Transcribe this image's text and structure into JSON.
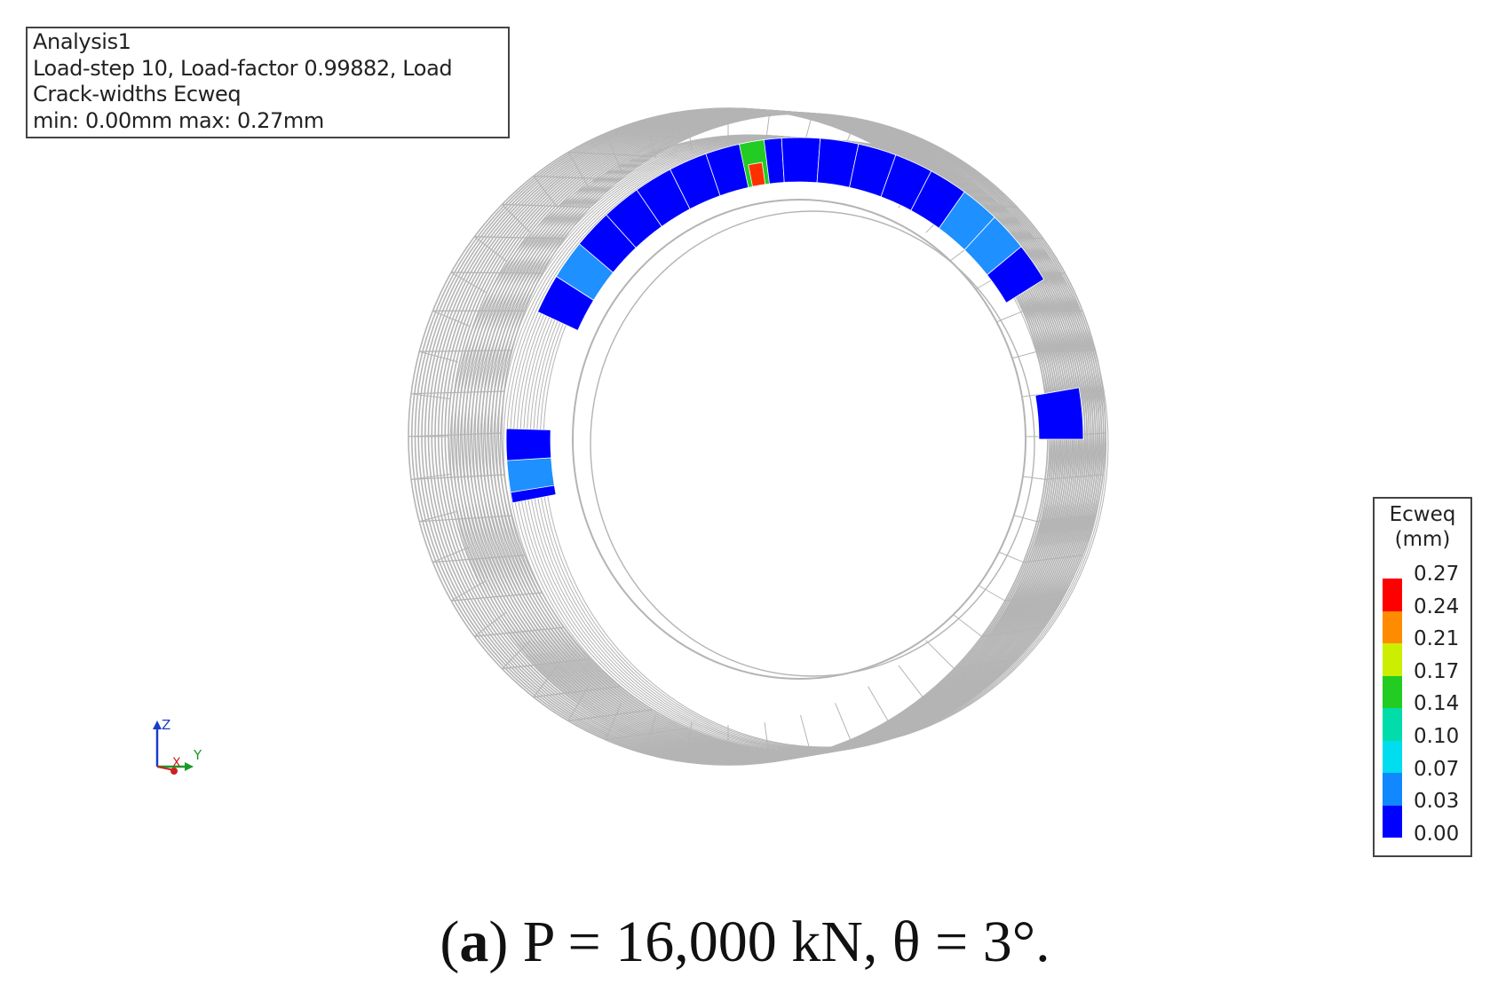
{
  "info": {
    "line1": "Analysis1",
    "line2": "Load-step 10, Load-factor 0.99882, Load",
    "line3": "Crack-widths Ecweq",
    "line4": "min:  0.00mm max:  0.27mm"
  },
  "legend": {
    "title_line1": "Ecweq",
    "title_line2": "(mm)",
    "labels": [
      "0.27",
      "0.24",
      "0.21",
      "0.17",
      "0.14",
      "0.10",
      "0.07",
      "0.03",
      "0.00"
    ],
    "colors": [
      "#ff0000",
      "#ff8c00",
      "#ccee00",
      "#22cc22",
      "#00ddaa",
      "#00ddee",
      "#1188ff",
      "#0000ff"
    ]
  },
  "axes": {
    "z": "Z",
    "x": "X",
    "y": "Y"
  },
  "caption": {
    "open": "(",
    "letter": "a",
    "rest": ") P = 16,000 kN, θ = 3°."
  },
  "colors": {
    "mesh": "#b4b4b4",
    "crack_low": "#0000ff",
    "crack_mid": "#1e90ff",
    "crack_high": "#ff3000"
  }
}
